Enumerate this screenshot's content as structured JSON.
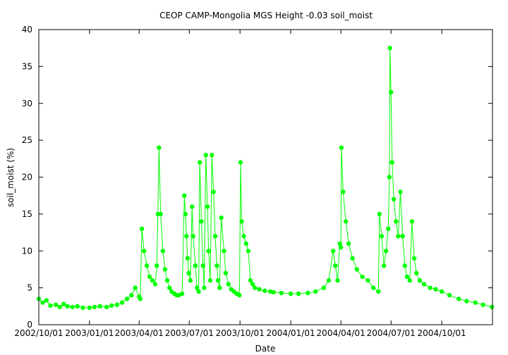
{
  "chart_data": {
    "type": "scatter",
    "title": "CEOP CAMP-Mongolia MGS Height -0.03 soil_moist",
    "xlabel": "Date",
    "ylabel": "soil_moist (%)",
    "xlim": [
      "2002-10-01",
      "2005-01-01"
    ],
    "ylim": [
      0,
      40
    ],
    "y_ticks": [
      0,
      5,
      10,
      15,
      20,
      25,
      30,
      35,
      40
    ],
    "x_ticks": [
      "2002/10/01",
      "2003/01/01",
      "2003/04/01",
      "2003/07/01",
      "2003/10/01",
      "2004/01/01",
      "2004/04/01",
      "2004/07/01",
      "2004/10/01"
    ],
    "grid": false,
    "legend": "none",
    "series": [
      {
        "color": "#00ff00",
        "marker": "circle",
        "connected": true,
        "x": [
          "2002-10-01",
          "2002-10-08",
          "2002-10-15",
          "2002-10-22",
          "2002-11-01",
          "2002-11-08",
          "2002-11-15",
          "2002-11-22",
          "2002-12-01",
          "2002-12-10",
          "2002-12-20",
          "2003-01-01",
          "2003-01-10",
          "2003-01-20",
          "2003-02-01",
          "2003-02-10",
          "2003-02-20",
          "2003-03-01",
          "2003-03-10",
          "2003-03-18",
          "2003-03-25",
          "2003-04-01",
          "2003-04-03",
          "2003-04-06",
          "2003-04-10",
          "2003-04-15",
          "2003-04-20",
          "2003-04-25",
          "2003-04-30",
          "2003-05-03",
          "2003-05-05",
          "2003-05-07",
          "2003-05-10",
          "2003-05-14",
          "2003-05-18",
          "2003-05-22",
          "2003-05-26",
          "2003-05-30",
          "2003-06-04",
          "2003-06-08",
          "2003-06-12",
          "2003-06-18",
          "2003-06-22",
          "2003-06-24",
          "2003-06-26",
          "2003-06-28",
          "2003-06-30",
          "2003-07-03",
          "2003-07-06",
          "2003-07-08",
          "2003-07-12",
          "2003-07-15",
          "2003-07-18",
          "2003-07-20",
          "2003-07-23",
          "2003-07-26",
          "2003-07-28",
          "2003-07-31",
          "2003-08-03",
          "2003-08-05",
          "2003-08-08",
          "2003-08-11",
          "2003-08-14",
          "2003-08-17",
          "2003-08-20",
          "2003-08-22",
          "2003-08-25",
          "2003-08-28",
          "2003-09-02",
          "2003-09-05",
          "2003-09-10",
          "2003-09-15",
          "2003-09-20",
          "2003-09-25",
          "2003-09-30",
          "2003-10-02",
          "2003-10-04",
          "2003-10-08",
          "2003-10-12",
          "2003-10-16",
          "2003-10-20",
          "2003-10-24",
          "2003-10-28",
          "2003-11-05",
          "2003-11-15",
          "2003-11-25",
          "2003-12-01",
          "2003-12-15",
          "2004-01-01",
          "2004-01-15",
          "2004-02-01",
          "2004-02-15",
          "2004-03-01",
          "2004-03-10",
          "2004-03-18",
          "2004-03-22",
          "2004-03-26",
          "2004-03-30",
          "2004-04-01",
          "2004-04-02",
          "2004-04-05",
          "2004-04-10",
          "2004-04-15",
          "2004-04-22",
          "2004-04-30",
          "2004-05-10",
          "2004-05-20",
          "2004-05-30",
          "2004-06-08",
          "2004-06-10",
          "2004-06-14",
          "2004-06-18",
          "2004-06-22",
          "2004-06-26",
          "2004-06-28",
          "2004-06-29",
          "2004-07-01",
          "2004-07-03",
          "2004-07-06",
          "2004-07-10",
          "2004-07-14",
          "2004-07-18",
          "2004-07-22",
          "2004-07-26",
          "2004-07-30",
          "2004-08-04",
          "2004-08-08",
          "2004-08-12",
          "2004-08-16",
          "2004-08-22",
          "2004-08-30",
          "2004-09-10",
          "2004-09-20",
          "2004-10-01",
          "2004-10-15",
          "2004-11-01",
          "2004-11-15",
          "2004-12-01",
          "2004-12-15",
          "2004-12-31"
        ],
        "values": [
          3.5,
          3.0,
          3.3,
          2.6,
          2.7,
          2.4,
          2.8,
          2.5,
          2.4,
          2.5,
          2.3,
          2.3,
          2.4,
          2.5,
          2.4,
          2.6,
          2.7,
          3.0,
          3.5,
          4.0,
          5.0,
          3.8,
          3.5,
          13.0,
          10.0,
          8.0,
          6.5,
          6.0,
          5.5,
          8.0,
          15.0,
          24.0,
          15.0,
          10.0,
          7.5,
          6.0,
          5.0,
          4.5,
          4.2,
          4.0,
          4.0,
          4.2,
          17.5,
          15.0,
          12.0,
          9.0,
          7.0,
          6.0,
          16.0,
          12.0,
          8.0,
          5.0,
          4.5,
          22.0,
          14.0,
          8.0,
          5.0,
          23.0,
          16.0,
          10.0,
          6.0,
          23.0,
          18.0,
          12.0,
          8.0,
          6.0,
          5.0,
          14.5,
          10.0,
          7.0,
          5.5,
          4.8,
          4.5,
          4.2,
          4.0,
          22.0,
          14.0,
          12.0,
          11.0,
          10.0,
          6.0,
          5.5,
          5.0,
          4.8,
          4.6,
          4.5,
          4.4,
          4.3,
          4.2,
          4.2,
          4.3,
          4.5,
          5.0,
          6.0,
          10.0,
          8.0,
          6.0,
          11.0,
          10.5,
          24.0,
          18.0,
          14.0,
          11.0,
          9.0,
          7.5,
          6.5,
          6.0,
          5.0,
          4.5,
          15.0,
          12.0,
          8.0,
          10.0,
          13.0,
          20.0,
          37.5,
          31.5,
          22.0,
          17.0,
          14.0,
          12.0,
          18.0,
          12.0,
          8.0,
          6.5,
          6.0,
          14.0,
          9.0,
          7.0,
          6.0,
          5.5,
          5.0,
          4.8,
          4.5,
          4.0,
          3.5,
          3.2,
          3.0,
          2.7,
          2.4
        ]
      }
    ]
  }
}
